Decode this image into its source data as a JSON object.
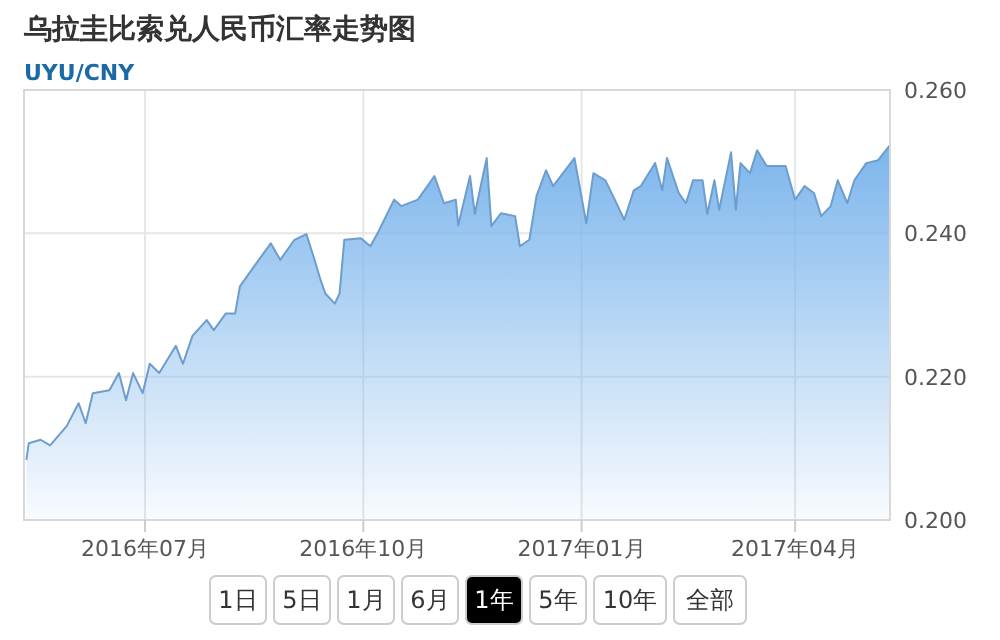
{
  "chart_data": {
    "type": "area",
    "title": "乌拉圭比索兑人民币汇率走势图",
    "subtitle": "UYU/CNY",
    "x": [
      "2016-05-12",
      "2016-05-13",
      "2016-05-18",
      "2016-05-22",
      "2016-05-29",
      "2016-06-03",
      "2016-06-06",
      "2016-06-09",
      "2016-06-16",
      "2016-06-20",
      "2016-06-23",
      "2016-06-26",
      "2016-06-30",
      "2016-07-03",
      "2016-07-07",
      "2016-07-14",
      "2016-07-17",
      "2016-07-21",
      "2016-07-27",
      "2016-07-30",
      "2016-08-04",
      "2016-08-08",
      "2016-08-10",
      "2016-08-16",
      "2016-08-23",
      "2016-08-27",
      "2016-09-02",
      "2016-09-07",
      "2016-09-10",
      "2016-09-13",
      "2016-09-15",
      "2016-09-19",
      "2016-09-21",
      "2016-09-23",
      "2016-09-30",
      "2016-10-04",
      "2016-10-07",
      "2016-10-14",
      "2016-10-17",
      "2016-10-24",
      "2016-10-31",
      "2016-11-04",
      "2016-11-09",
      "2016-11-10",
      "2016-11-15",
      "2016-11-17",
      "2016-11-22",
      "2016-11-24",
      "2016-11-28",
      "2016-12-04",
      "2016-12-06",
      "2016-12-10",
      "2016-12-13",
      "2016-12-17",
      "2016-12-20",
      "2016-12-29",
      "2017-01-03",
      "2017-01-06",
      "2017-01-11",
      "2017-01-15",
      "2017-01-19",
      "2017-01-23",
      "2017-01-26",
      "2017-02-01",
      "2017-02-04",
      "2017-02-06",
      "2017-02-11",
      "2017-02-14",
      "2017-02-17",
      "2017-02-21",
      "2017-02-23",
      "2017-02-26",
      "2017-02-28",
      "2017-03-05",
      "2017-03-07",
      "2017-03-09",
      "2017-03-13",
      "2017-03-16",
      "2017-03-20",
      "2017-03-28",
      "2017-04-01",
      "2017-04-05",
      "2017-04-09",
      "2017-04-12",
      "2017-04-16",
      "2017-04-19",
      "2017-04-23",
      "2017-04-26",
      "2017-05-01",
      "2017-05-06",
      "2017-05-11"
    ],
    "series": [
      {
        "color": "#7cb5ec",
        "values": [
          0.2084,
          0.2107,
          0.2112,
          0.2104,
          0.2131,
          0.2163,
          0.2135,
          0.2177,
          0.2181,
          0.2205,
          0.2167,
          0.2205,
          0.2177,
          0.2218,
          0.2205,
          0.2243,
          0.2218,
          0.2257,
          0.2279,
          0.2265,
          0.2288,
          0.2288,
          0.2326,
          0.2354,
          0.2386,
          0.2363,
          0.2391,
          0.2399,
          0.2368,
          0.2335,
          0.2316,
          0.2302,
          0.2316,
          0.2391,
          0.2393,
          0.2382,
          0.24,
          0.2447,
          0.2438,
          0.2447,
          0.248,
          0.2442,
          0.2447,
          0.2411,
          0.248,
          0.2427,
          0.2505,
          0.241,
          0.2428,
          0.2424,
          0.2382,
          0.2391,
          0.2452,
          0.2488,
          0.2466,
          0.2505,
          0.2414,
          0.2484,
          0.2474,
          0.2447,
          0.2419,
          0.246,
          0.2466,
          0.2498,
          0.246,
          0.2505,
          0.2456,
          0.2442,
          0.2474,
          0.2474,
          0.2427,
          0.2474,
          0.2433,
          0.2513,
          0.2433,
          0.2498,
          0.2484,
          0.2516,
          0.2494,
          0.2494,
          0.2447,
          0.2466,
          0.2456,
          0.2424,
          0.2438,
          0.2474,
          0.2442,
          0.2474,
          0.2498,
          0.2502,
          0.2523
        ]
      }
    ],
    "xlim": [
      "2016-05-11",
      "2017-05-11"
    ],
    "xticks": [
      {
        "value": "2016-07-01",
        "label": "2016年07月"
      },
      {
        "value": "2016-10-01",
        "label": "2016年10月"
      },
      {
        "value": "2017-01-01",
        "label": "2017年01月"
      },
      {
        "value": "2017-04-01",
        "label": "2017年04月"
      }
    ],
    "ylim": [
      0.2,
      0.26
    ],
    "yticks": [
      {
        "value": 0.2,
        "label": "0.200"
      },
      {
        "value": 0.22,
        "label": "0.220"
      },
      {
        "value": 0.24,
        "label": "0.240"
      },
      {
        "value": 0.26,
        "label": "0.260"
      }
    ],
    "grid": true,
    "annotations": [
      "1日",
      "5日",
      "1月",
      "6月",
      "1年",
      "5年",
      "10年",
      "全部"
    ]
  }
}
